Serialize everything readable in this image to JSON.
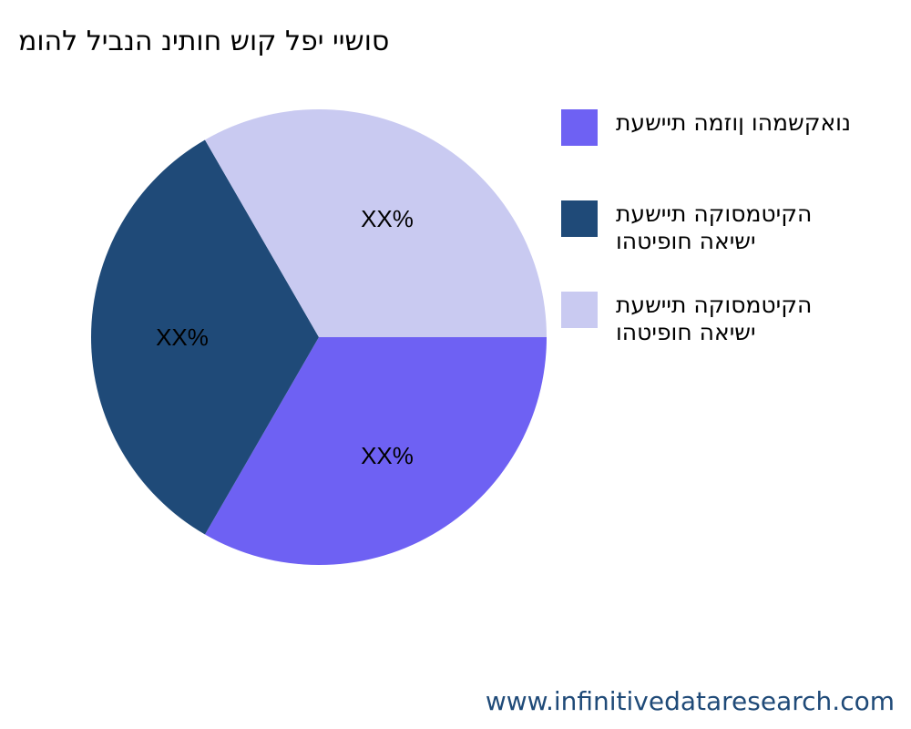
{
  "chart_data": {
    "type": "pie",
    "title": "סושיי יפל קוש חותינ הנביל להומ",
    "slices": [
      {
        "label": "נואקשמהו ןוזמה תיישעת",
        "value": 33.33,
        "value_label": "XX%",
        "color": "#6e61f3"
      },
      {
        "label": "הקיטמסוקה תיישעת ישיאה חופיטהו",
        "value": 33.33,
        "value_label": "XX%",
        "color": "#1f4a78"
      },
      {
        "label": "הקיטמסוקה תיישעת ישיאה חופיטהו",
        "value": 33.33,
        "value_label": "XX%",
        "color": "#c9caf1"
      }
    ],
    "legend_position": "right"
  },
  "watermark": "www.infinitivedataresearch.com"
}
